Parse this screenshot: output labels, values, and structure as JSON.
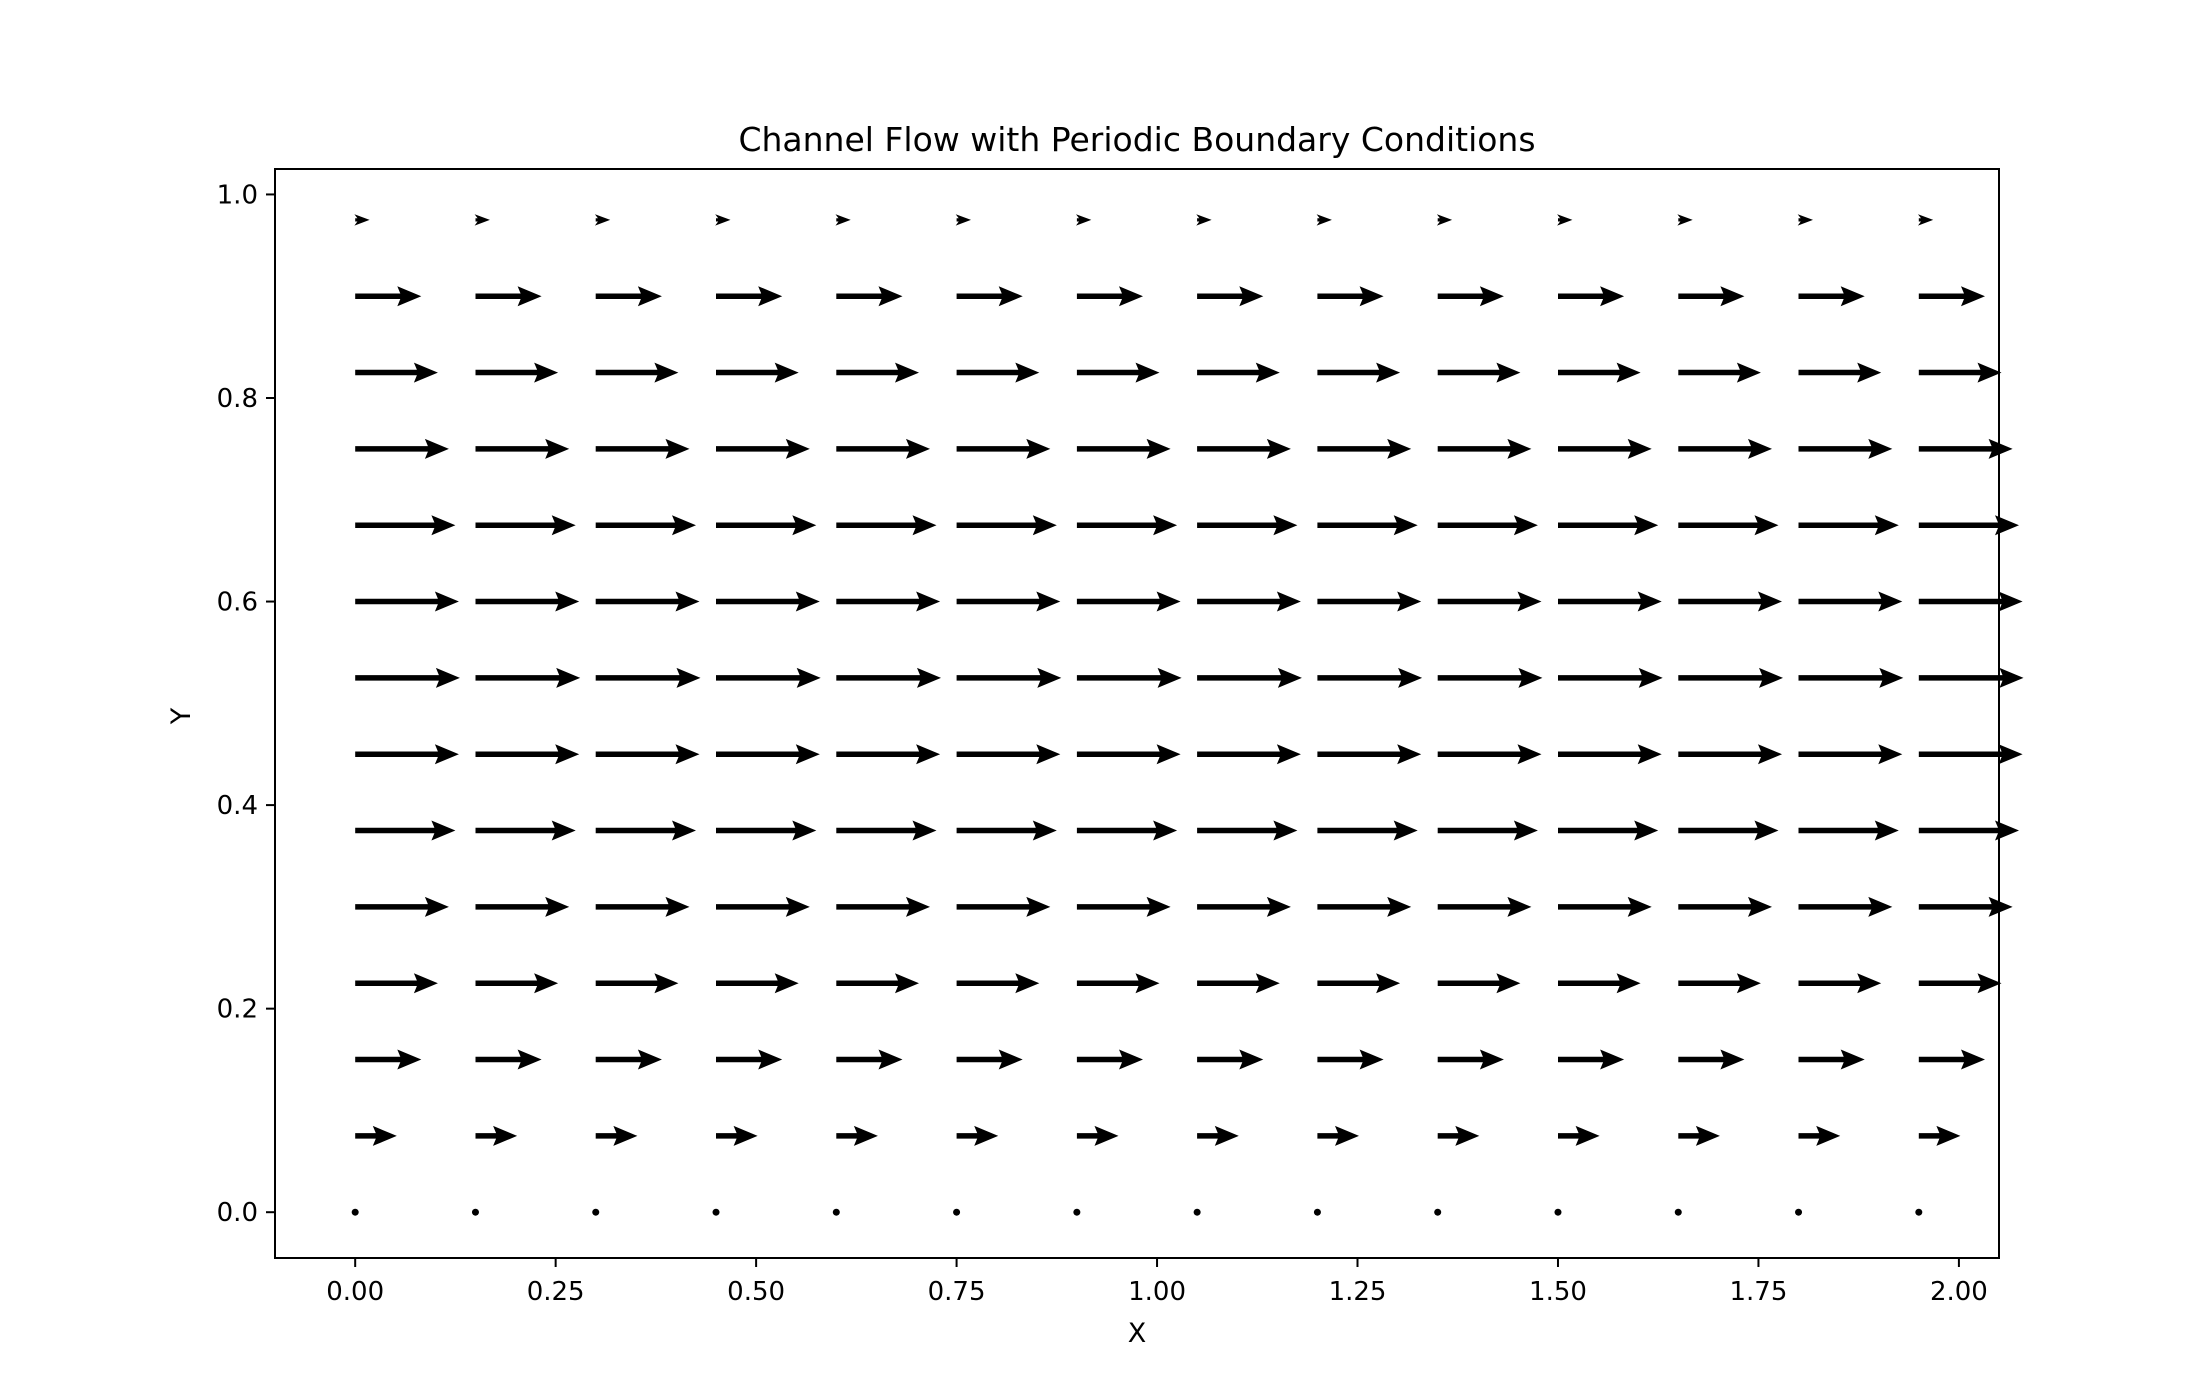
{
  "chart_data": {
    "type": "quiver",
    "title": "Channel Flow with Periodic Boundary Conditions",
    "xlabel": "X",
    "ylabel": "Y",
    "xlim": [
      -0.1,
      2.05
    ],
    "ylim": [
      -0.045,
      1.025
    ],
    "xticks": [
      0.0,
      0.25,
      0.5,
      0.75,
      1.0,
      1.25,
      1.5,
      1.75,
      2.0
    ],
    "xtick_labels": [
      "0.00",
      "0.25",
      "0.50",
      "0.75",
      "1.00",
      "1.25",
      "1.50",
      "1.75",
      "2.00"
    ],
    "yticks": [
      0.0,
      0.2,
      0.4,
      0.6,
      0.8,
      1.0
    ],
    "ytick_labels": [
      "0.0",
      "0.2",
      "0.4",
      "0.6",
      "0.8",
      "1.0"
    ],
    "grid": false,
    "x": [
      0.0,
      0.15,
      0.3,
      0.45,
      0.6,
      0.75,
      0.9,
      1.05,
      1.2,
      1.35,
      1.5,
      1.65,
      1.8,
      1.95
    ],
    "y": [
      0.0,
      0.075,
      0.15,
      0.225,
      0.3,
      0.375,
      0.45,
      0.525,
      0.6,
      0.675,
      0.75,
      0.825,
      0.9,
      0.975
    ],
    "u_by_row": [
      0.0,
      0.0519,
      0.0825,
      0.1031,
      0.1169,
      0.125,
      0.1294,
      0.1306,
      0.1294,
      0.125,
      0.1169,
      0.1031,
      0.0825,
      0.018
    ],
    "v_by_row": [
      0,
      0,
      0,
      0,
      0,
      0,
      0,
      0,
      0,
      0,
      0,
      0,
      0,
      0
    ],
    "arrow_color": "#000000"
  }
}
